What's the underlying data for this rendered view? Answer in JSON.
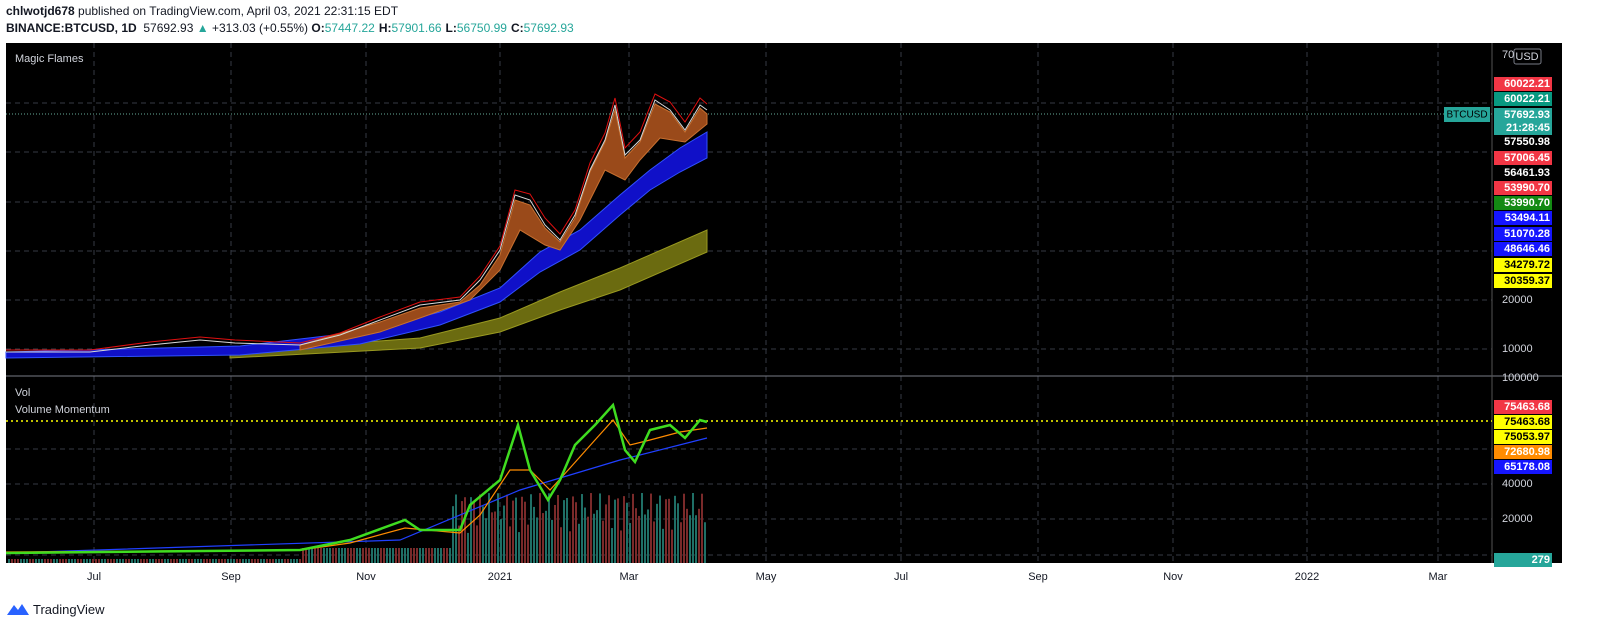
{
  "header": {
    "publisher": "chlwotjd678",
    "published": "published on TradingView.com, April 03, 2021 22:31:15 EDT",
    "symbol": "BINANCE:BTCUSD, 1D",
    "price": "57692.93",
    "change": "+313.03 (+0.55%)",
    "ohlc": [
      {
        "label": "O:",
        "value": "57447.22"
      },
      {
        "label": "H:",
        "value": "57901.66"
      },
      {
        "label": "L:",
        "value": "56750.99"
      },
      {
        "label": "C:",
        "value": "57692.93"
      }
    ]
  },
  "main_pane": {
    "indicator": "Magic Flames",
    "currency": "USD",
    "axis_labels": [
      "70",
      "20000",
      "10000"
    ],
    "price_tags": [
      "60022.21",
      "60022.21",
      "57692.93",
      "21:28:45",
      "57550.98",
      "57006.45",
      "56461.93",
      "53990.70",
      "53990.70",
      "53494.11",
      "51070.28",
      "48646.46",
      "34279.72",
      "30359.37"
    ],
    "symbol_tag": "BTCUSD"
  },
  "lower_pane": {
    "indicators": [
      "Vol",
      "Volume Momentum"
    ],
    "axis_labels": [
      "100000",
      "40000",
      "20000"
    ],
    "price_tags": [
      "75463.68",
      "75463.68",
      "75053.97",
      "72680.98",
      "65178.08",
      "279"
    ]
  },
  "time_axis": [
    "Jul",
    "Sep",
    "Nov",
    "2021",
    "Mar",
    "May",
    "Jul",
    "Sep",
    "Nov",
    "2022",
    "Mar"
  ],
  "footer": {
    "brand": "TradingView"
  }
}
